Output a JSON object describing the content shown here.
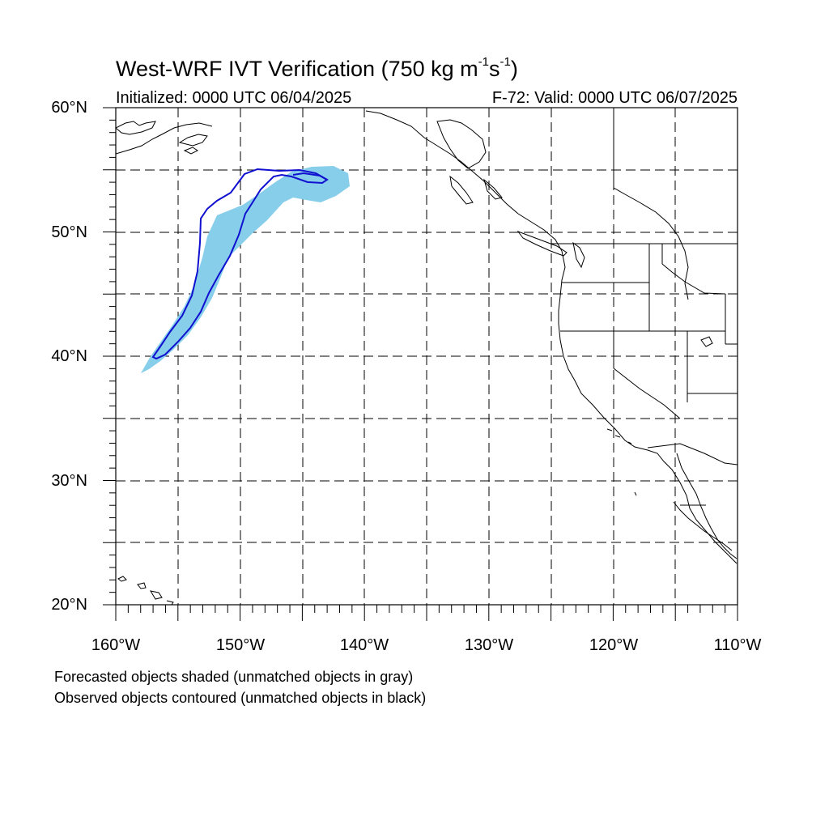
{
  "title": "West-WRF IVT Verification (750 kg m",
  "title_sup1": "-1",
  "title_s": "s",
  "title_sup2": "-1",
  "title_close": ")",
  "initialized": "Initialized: 0000 UTC 06/04/2025",
  "valid": "F-72: Valid: 0000 UTC 06/07/2025",
  "lat_labels": [
    "60°N",
    "50°N",
    "40°N",
    "30°N",
    "20°N"
  ],
  "lon_labels": [
    "160°W",
    "150°W",
    "140°W",
    "130°W",
    "120°W",
    "110°W"
  ],
  "notes": [
    "Forecasted objects shaded (unmatched objects in gray)",
    "Observed objects contoured (unmatched objects in black)"
  ],
  "colors": {
    "forecast_fill": "#87ceeb",
    "observed_contour": "#1010d0",
    "coastline": "#000000",
    "grid": "#000000"
  },
  "map": {
    "lon_range": [
      -160,
      -110
    ],
    "lat_range": [
      20,
      60
    ],
    "grid_lon_step": 5,
    "grid_lat_step": 5,
    "gridlines": "dashed"
  }
}
